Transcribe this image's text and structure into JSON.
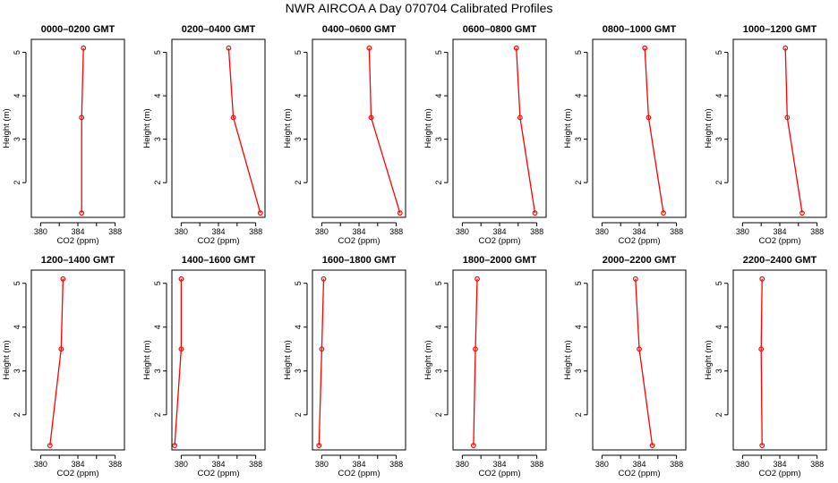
{
  "chart_data": {
    "type": "line",
    "title": "NWR AIRCOA A  Day 070704  Calibrated Profiles",
    "xlabel": "CO2 (ppm)",
    "ylabel": "Height (m)",
    "color": "#ff0000",
    "xticks": [
      "380",
      "384",
      "388"
    ],
    "yticks": [
      "2",
      "3",
      "4",
      "5"
    ],
    "xlim": [
      379,
      389
    ],
    "panels": [
      {
        "title": "0000–0200 GMT",
        "xlim": [
          379,
          389
        ],
        "x": [
          384.4,
          384.4,
          384.6
        ],
        "y": [
          1.3,
          3.5,
          5.1
        ]
      },
      {
        "title": "0200–0400 GMT",
        "xlim": [
          379,
          389
        ],
        "x": [
          388.5,
          385.6,
          385.1
        ],
        "y": [
          1.3,
          3.5,
          5.1
        ]
      },
      {
        "title": "0400–0600 GMT",
        "xlim": [
          379,
          389
        ],
        "x": [
          388.4,
          385.3,
          385.1
        ],
        "y": [
          1.3,
          3.5,
          5.1
        ]
      },
      {
        "title": "0600–0800 GMT",
        "xlim": [
          379,
          389
        ],
        "x": [
          387.8,
          386.2,
          385.8
        ],
        "y": [
          1.3,
          3.5,
          5.1
        ]
      },
      {
        "title": "0800–1000 GMT",
        "xlim": [
          379,
          389
        ],
        "x": [
          386.6,
          385.0,
          384.6
        ],
        "y": [
          1.3,
          3.5,
          5.1
        ]
      },
      {
        "title": "1000–1200 GMT",
        "xlim": [
          379,
          389
        ],
        "x": [
          386.4,
          384.8,
          384.6
        ],
        "y": [
          1.3,
          3.5,
          5.1
        ]
      },
      {
        "title": "1200–1400 GMT",
        "xlim": [
          379,
          389
        ],
        "x": [
          381.0,
          382.2,
          382.4
        ],
        "y": [
          1.3,
          3.5,
          5.1
        ]
      },
      {
        "title": "1400–1600 GMT",
        "xlim": [
          379,
          389
        ],
        "x": [
          379.3,
          380.0,
          380.0
        ],
        "y": [
          1.3,
          3.5,
          5.1
        ]
      },
      {
        "title": "1600–1800 GMT",
        "xlim": [
          379,
          389
        ],
        "x": [
          379.7,
          380.0,
          380.2
        ],
        "y": [
          1.3,
          3.5,
          5.1
        ]
      },
      {
        "title": "1800–2000 GMT",
        "xlim": [
          379,
          389
        ],
        "x": [
          381.2,
          381.4,
          381.6
        ],
        "y": [
          1.3,
          3.5,
          5.1
        ]
      },
      {
        "title": "2000–2200 GMT",
        "xlim": [
          379,
          389
        ],
        "x": [
          385.4,
          384.0,
          383.6
        ],
        "y": [
          1.3,
          3.5,
          5.1
        ]
      },
      {
        "title": "2200–2400 GMT",
        "xlim": [
          379,
          389
        ],
        "x": [
          382.1,
          382.0,
          382.1
        ],
        "y": [
          1.3,
          3.5,
          5.1
        ]
      }
    ],
    "ylim": [
      1.2,
      5.3
    ]
  }
}
